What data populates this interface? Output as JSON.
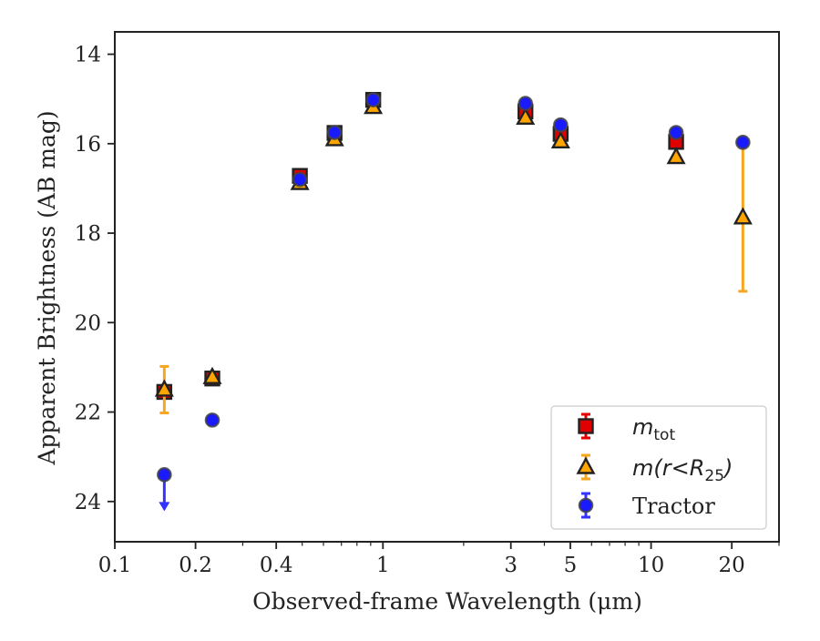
{
  "chart_data": {
    "type": "scatter",
    "title": "",
    "xlabel": "Observed-frame Wavelength (μm)",
    "ylabel": "Apparent Brightness (AB mag)",
    "x_scale": "log",
    "xlim": [
      0.1,
      30
    ],
    "ylim": [
      24.9,
      13.5
    ],
    "y_inverted": true,
    "grid": false,
    "legend_position": "lower-right",
    "x_ticks": [
      {
        "value": 0.1,
        "label": "0.1"
      },
      {
        "value": 0.2,
        "label": "0.2"
      },
      {
        "value": 0.4,
        "label": "0.4"
      },
      {
        "value": 1,
        "label": "1"
      },
      {
        "value": 3,
        "label": "3"
      },
      {
        "value": 5,
        "label": "5"
      },
      {
        "value": 10,
        "label": "10"
      },
      {
        "value": 20,
        "label": "20"
      }
    ],
    "x_minor_ticks": [
      0.3,
      0.5,
      0.6,
      0.7,
      0.8,
      0.9,
      2,
      4,
      6,
      7,
      8,
      9,
      30
    ],
    "y_ticks": [
      {
        "value": 14,
        "label": "14"
      },
      {
        "value": 16,
        "label": "16"
      },
      {
        "value": 18,
        "label": "18"
      },
      {
        "value": 20,
        "label": "20"
      },
      {
        "value": 22,
        "label": "22"
      },
      {
        "value": 24,
        "label": "24"
      }
    ],
    "series": [
      {
        "name": "m_tot",
        "legend_label": "m",
        "legend_sub": "tot",
        "marker": "square",
        "color": "#e00000",
        "errcolor": "#e00000",
        "points": [
          {
            "x": 0.153,
            "y": 21.55,
            "err": 0.05
          },
          {
            "x": 0.231,
            "y": 21.25,
            "err": 0.05
          },
          {
            "x": 0.49,
            "y": 16.72,
            "err": 0.05
          },
          {
            "x": 0.66,
            "y": 15.76,
            "err": 0.05
          },
          {
            "x": 0.92,
            "y": 15.02,
            "err": 0.05
          },
          {
            "x": 3.4,
            "y": 15.28,
            "err": 0.05
          },
          {
            "x": 4.6,
            "y": 15.78,
            "err": 0.05
          },
          {
            "x": 12.4,
            "y": 15.96,
            "err": 0.05
          }
        ]
      },
      {
        "name": "m(r<R25)",
        "legend_label": "m(r<R",
        "legend_sub": "25",
        "legend_tail": ")",
        "marker": "triangle",
        "color": "#ffa500",
        "errcolor": "#f5a623",
        "points": [
          {
            "x": 0.153,
            "y": 21.5,
            "err": 0.52
          },
          {
            "x": 0.231,
            "y": 21.22,
            "err": 0.05
          },
          {
            "x": 0.49,
            "y": 16.88,
            "err": 0.05
          },
          {
            "x": 0.66,
            "y": 15.9,
            "err": 0.05
          },
          {
            "x": 0.92,
            "y": 15.18,
            "err": 0.05
          },
          {
            "x": 3.4,
            "y": 15.42,
            "err": 0.05
          },
          {
            "x": 4.6,
            "y": 15.95,
            "err": 0.05
          },
          {
            "x": 12.4,
            "y": 16.3,
            "err": 0.05
          },
          {
            "x": 22.0,
            "y": 17.65,
            "err": 1.65
          }
        ]
      },
      {
        "name": "Tractor",
        "legend_label": "Tractor",
        "marker": "circle",
        "color": "#1a1aff",
        "errcolor": "#3333ff",
        "points": [
          {
            "x": 0.153,
            "y": 23.4,
            "upper_limit": true
          },
          {
            "x": 0.231,
            "y": 22.18,
            "err": 0.02
          },
          {
            "x": 0.49,
            "y": 16.8,
            "err": 0.02
          },
          {
            "x": 0.66,
            "y": 15.75,
            "err": 0.02
          },
          {
            "x": 0.92,
            "y": 15.02,
            "err": 0.02
          },
          {
            "x": 3.4,
            "y": 15.1,
            "err": 0.02
          },
          {
            "x": 4.6,
            "y": 15.58,
            "err": 0.02
          },
          {
            "x": 12.4,
            "y": 15.75,
            "err": 0.02
          },
          {
            "x": 22.0,
            "y": 15.97,
            "err": 0.02
          }
        ]
      }
    ]
  }
}
